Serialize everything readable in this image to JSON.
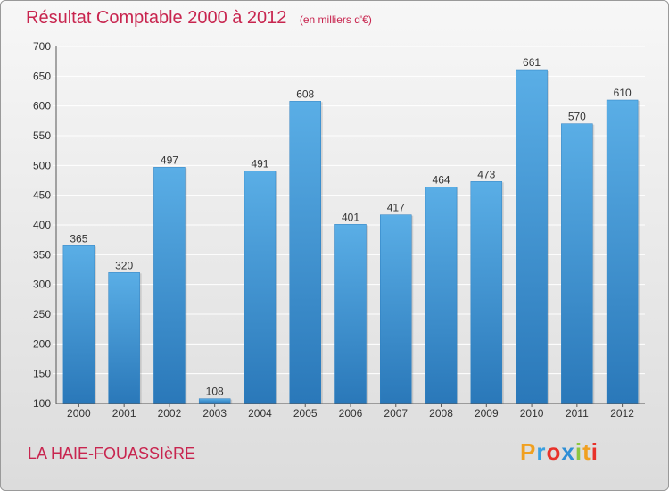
{
  "chart_data": {
    "type": "bar",
    "title": "Résultat Comptable 2000 à 2012",
    "subtitle": "(en milliers d'€)",
    "categories": [
      "2000",
      "2001",
      "2002",
      "2003",
      "2004",
      "2005",
      "2006",
      "2007",
      "2008",
      "2009",
      "2010",
      "2011",
      "2012"
    ],
    "values": [
      365,
      320,
      497,
      108,
      491,
      608,
      401,
      417,
      464,
      473,
      661,
      570,
      610
    ],
    "ylim": [
      100,
      700
    ],
    "yticks": [
      100,
      150,
      200,
      250,
      300,
      350,
      400,
      450,
      500,
      550,
      600,
      650,
      700
    ],
    "xlabel": "",
    "ylabel": "",
    "grid": true,
    "bar_color": "#4f9fde"
  },
  "footer": {
    "town": "LA HAIE-FOUASSIèRE",
    "logo_letters": [
      "P",
      "r",
      "o",
      "x",
      "i",
      "t",
      "i"
    ],
    "logo_colors": [
      "#f0a020",
      "#3aa0e0",
      "#e8322a",
      "#2e8fd6",
      "#8cc63f",
      "#f0a020",
      "#e8322a"
    ]
  }
}
